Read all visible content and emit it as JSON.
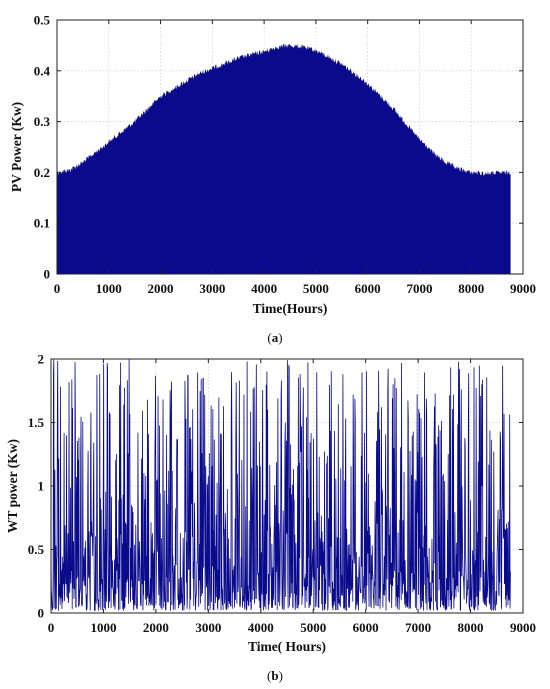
{
  "colors": {
    "series": "#0a0a8c",
    "axis": "#222222",
    "grid": "#c8c8c8"
  },
  "chart_data": [
    {
      "type": "area",
      "panel_caption_prefix": "(",
      "panel_letter": "a",
      "panel_caption_suffix": ")",
      "xlabel": "Time(Hours)",
      "ylabel": "PV Power (Kw)",
      "xlim": [
        0,
        9000
      ],
      "ylim": [
        0,
        0.5
      ],
      "xticks": [
        "0",
        "1000",
        "2000",
        "3000",
        "4000",
        "5000",
        "6000",
        "7000",
        "8000",
        "9000"
      ],
      "yticks": [
        "0",
        "0.1",
        "0.2",
        "0.3",
        "0.4",
        "0.5"
      ],
      "grid": true,
      "data_x_end": 8760,
      "envelope": {
        "x": [
          0,
          250,
          500,
          750,
          1000,
          1250,
          1500,
          1750,
          2000,
          2250,
          2500,
          2750,
          3000,
          3250,
          3500,
          3750,
          4000,
          4250,
          4500,
          4750,
          5000,
          5250,
          5500,
          5750,
          6000,
          6250,
          6500,
          6750,
          7000,
          7250,
          7500,
          7750,
          8000,
          8250,
          8500,
          8760
        ],
        "y": [
          0.205,
          0.21,
          0.225,
          0.245,
          0.265,
          0.285,
          0.305,
          0.33,
          0.355,
          0.37,
          0.385,
          0.4,
          0.41,
          0.42,
          0.43,
          0.437,
          0.443,
          0.452,
          0.455,
          0.452,
          0.445,
          0.432,
          0.418,
          0.4,
          0.38,
          0.355,
          0.33,
          0.3,
          0.27,
          0.245,
          0.225,
          0.212,
          0.205,
          0.203,
          0.204,
          0.205
        ]
      }
    },
    {
      "type": "line",
      "panel_caption_prefix": "(",
      "panel_letter": "b",
      "panel_caption_suffix": ")",
      "xlabel": "Time( Hours)",
      "ylabel": "WT power (Kw)",
      "xlim": [
        0,
        9000
      ],
      "ylim": [
        0,
        2
      ],
      "xticks": [
        "0",
        "1000",
        "2000",
        "3000",
        "4000",
        "5000",
        "6000",
        "7000",
        "8000",
        "9000"
      ],
      "yticks": [
        "0",
        "0.5",
        "1",
        "1.5",
        "2"
      ],
      "grid": true,
      "data_x_end": 8760,
      "value_range": [
        0,
        2
      ]
    }
  ]
}
